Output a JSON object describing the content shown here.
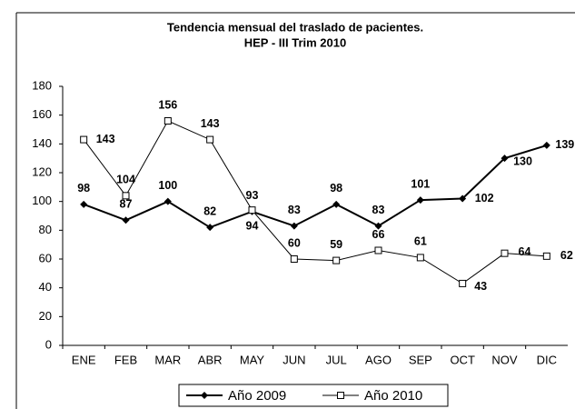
{
  "chart_data": {
    "type": "line",
    "title": "Tendencia mensual del traslado de pacientes.",
    "subtitle": "HEP - III Trim 2010",
    "categories": [
      "ENE",
      "FEB",
      "MAR",
      "ABR",
      "MAY",
      "JUN",
      "JUL",
      "AGO",
      "SEP",
      "OCT",
      "NOV",
      "DIC"
    ],
    "series": [
      {
        "name": "Año 2009",
        "color": "#000000",
        "marker": "diamond",
        "values": [
          98,
          87,
          100,
          82,
          93,
          83,
          98,
          83,
          101,
          102,
          130,
          139
        ]
      },
      {
        "name": "Año 2010",
        "color": "#000000",
        "marker": "square",
        "values": [
          143,
          104,
          156,
          143,
          94,
          60,
          59,
          66,
          61,
          43,
          64,
          62
        ]
      }
    ],
    "ylim": [
      0,
      180
    ],
    "yticks": [
      0,
      20,
      40,
      60,
      80,
      100,
      120,
      140,
      160,
      180
    ],
    "grid": false,
    "legend": "bottom"
  }
}
